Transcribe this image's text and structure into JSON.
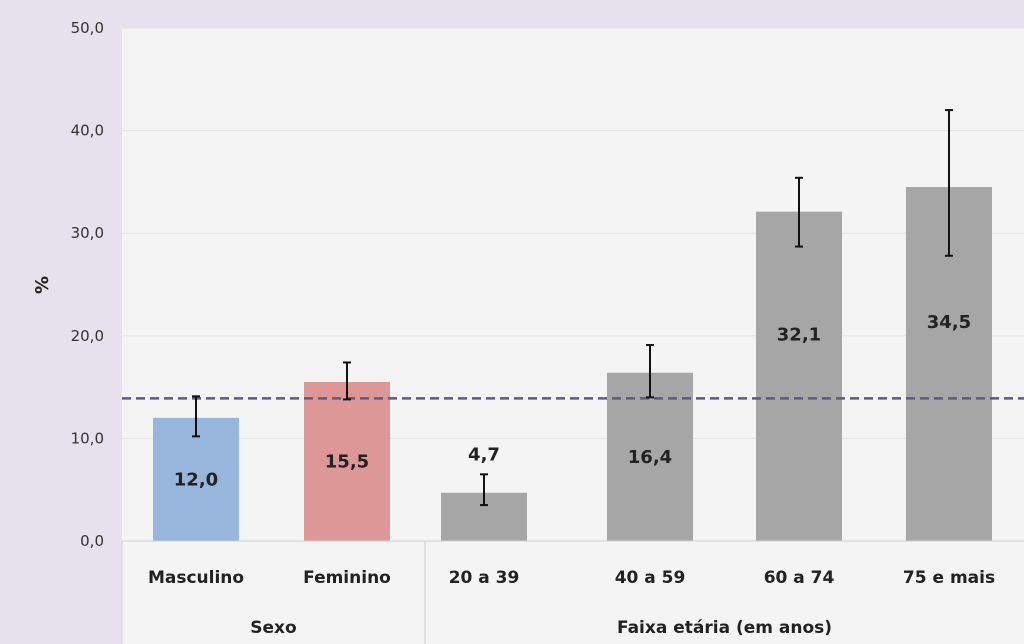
{
  "chart_data": {
    "type": "bar",
    "ylabel": "%",
    "ylim": [
      0,
      50
    ],
    "yticks": [
      "0,0",
      "10,0",
      "20,0",
      "30,0",
      "40,0",
      "50,0"
    ],
    "categories": [
      "Masculino",
      "Feminino",
      "20 a 39",
      "40 a 59",
      "60 a 74",
      "75 e mais"
    ],
    "values": [
      12.0,
      15.5,
      4.7,
      16.4,
      32.1,
      34.5
    ],
    "value_labels": [
      "12,0",
      "15,5",
      "4,7",
      "16,4",
      "32,1",
      "34,5"
    ],
    "error_low": [
      10.2,
      13.8,
      3.5,
      14.0,
      28.7,
      27.8
    ],
    "error_high": [
      14.1,
      17.4,
      6.5,
      19.1,
      35.4,
      42.0
    ],
    "bar_colors": [
      "#98b6dc",
      "#de9797",
      "#a6a6a6",
      "#a6a6a6",
      "#a6a6a6",
      "#a6a6a6"
    ],
    "groups": [
      {
        "label": "Sexo",
        "categories": [
          "Masculino",
          "Feminino"
        ]
      },
      {
        "label": "Faixa etária (em anos)",
        "categories": [
          "20 a 39",
          "40 a 59",
          "60 a 74",
          "75 e mais"
        ]
      }
    ],
    "reference_line": {
      "value": 13.9,
      "color": "#5c5887",
      "style": "dashed"
    },
    "grid": true,
    "legend": "none"
  },
  "colors": {
    "background": "#e6e1ec",
    "plot_area": "#f4f4f4",
    "gridline": "#e4e4e4"
  }
}
